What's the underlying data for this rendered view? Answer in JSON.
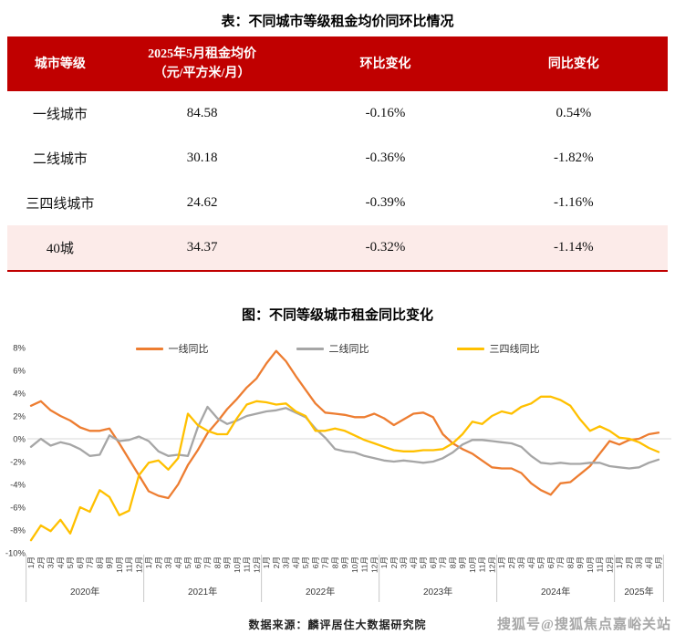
{
  "colors": {
    "header_red": "#c00000",
    "highlight_pink": "#fcebe9",
    "gridline": "#d9d9d9",
    "axis_text": "#3a3a3a",
    "separator": "#c8c8c8",
    "watermark_gray": "#a8a8a8"
  },
  "table": {
    "title": "表：不同城市等级租金均价同环比情况",
    "headers": [
      "城市等级",
      "2025年5月租金均价\n（元/平方米/月）",
      "环比变化",
      "同比变化"
    ],
    "rows": [
      {
        "tier": "一线城市",
        "price": "84.58",
        "mom": "-0.16%",
        "yoy": "0.54%"
      },
      {
        "tier": "二线城市",
        "price": "30.18",
        "mom": "-0.36%",
        "yoy": "-1.82%"
      },
      {
        "tier": "三四线城市",
        "price": "24.62",
        "mom": "-0.39%",
        "yoy": "-1.16%"
      },
      {
        "tier": "40城",
        "price": "34.37",
        "mom": "-0.32%",
        "yoy": "-1.14%"
      }
    ]
  },
  "chart_data": {
    "type": "line",
    "title": "图：不同等级城市租金同比变化",
    "ylabel": "",
    "xlabel": "",
    "ylim": [
      -10,
      8
    ],
    "y_ticks": [
      8,
      6,
      4,
      2,
      0,
      -2,
      -4,
      -6,
      -8,
      -10
    ],
    "y_tick_labels": [
      "8%",
      "6%",
      "4%",
      "2%",
      "0%",
      "-2%",
      "-4%",
      "-6%",
      "-8%",
      "-10%"
    ],
    "grid": "0%-line only",
    "legend_position": "top",
    "year_labels": [
      "2020年",
      "2021年",
      "2022年",
      "2023年",
      "2024年",
      "2025年"
    ],
    "year_month_counts": [
      12,
      12,
      12,
      12,
      12,
      5
    ],
    "x_labels": [
      "1月",
      "2月",
      "3月",
      "4月",
      "5月",
      "6月",
      "7月",
      "8月",
      "9月",
      "10月",
      "11月",
      "12月",
      "1月",
      "2月",
      "3月",
      "4月",
      "5月",
      "6月",
      "7月",
      "8月",
      "9月",
      "10月",
      "11月",
      "12月",
      "1月",
      "2月",
      "3月",
      "4月",
      "5月",
      "6月",
      "7月",
      "8月",
      "9月",
      "10月",
      "11月",
      "12月",
      "1月",
      "2月",
      "3月",
      "4月",
      "5月",
      "6月",
      "7月",
      "8月",
      "9月",
      "10月",
      "11月",
      "12月",
      "1月",
      "2月",
      "3月",
      "4月",
      "5月",
      "6月",
      "7月",
      "8月",
      "9月",
      "10月",
      "11月",
      "12月",
      "1月",
      "2月",
      "3月",
      "4月",
      "5月"
    ],
    "series": [
      {
        "name": "一线同比",
        "color": "#ed7d31",
        "values": [
          2.9,
          3.3,
          2.5,
          2.0,
          1.6,
          1.0,
          0.7,
          0.7,
          0.9,
          -0.4,
          -1.8,
          -3.2,
          -4.6,
          -5.0,
          -5.2,
          -4.0,
          -2.3,
          -1.0,
          0.5,
          1.5,
          2.6,
          3.5,
          4.5,
          5.3,
          6.6,
          7.7,
          6.8,
          5.5,
          4.3,
          3.1,
          2.3,
          2.2,
          2.1,
          1.9,
          1.9,
          2.2,
          1.8,
          1.2,
          1.7,
          2.2,
          2.3,
          1.9,
          0.4,
          -0.4,
          -0.9,
          -1.3,
          -1.9,
          -2.5,
          -2.6,
          -2.6,
          -3.0,
          -3.9,
          -4.5,
          -4.9,
          -3.9,
          -3.8,
          -3.1,
          -2.4,
          -1.3,
          -0.2,
          -0.5,
          -0.1,
          0.0,
          0.4,
          0.54
        ]
      },
      {
        "name": "二线同比",
        "color": "#a6a6a6",
        "values": [
          -0.7,
          0.0,
          -0.6,
          -0.3,
          -0.5,
          -0.9,
          -1.5,
          -1.4,
          0.3,
          -0.2,
          -0.1,
          0.2,
          -0.2,
          -1.1,
          -1.5,
          -1.4,
          -1.5,
          1.0,
          2.8,
          1.8,
          1.3,
          1.6,
          2.0,
          2.2,
          2.4,
          2.5,
          2.7,
          2.3,
          1.9,
          0.9,
          0.1,
          -0.9,
          -1.1,
          -1.2,
          -1.5,
          -1.7,
          -1.9,
          -2.0,
          -1.9,
          -2.0,
          -2.1,
          -2.0,
          -1.7,
          -1.2,
          -0.5,
          -0.1,
          -0.1,
          -0.2,
          -0.3,
          -0.4,
          -0.7,
          -1.5,
          -2.1,
          -2.2,
          -2.1,
          -2.2,
          -2.2,
          -2.1,
          -2.1,
          -2.4,
          -2.5,
          -2.6,
          -2.5,
          -2.1,
          -1.82
        ]
      },
      {
        "name": "三四线同比",
        "color": "#ffc000",
        "values": [
          -8.9,
          -7.6,
          -8.1,
          -7.1,
          -8.3,
          -6.0,
          -6.4,
          -4.5,
          -5.1,
          -6.7,
          -6.3,
          -3.2,
          -2.1,
          -1.9,
          -2.7,
          -1.7,
          2.2,
          1.2,
          0.7,
          0.4,
          0.4,
          1.8,
          3.0,
          3.3,
          3.2,
          3.0,
          3.1,
          2.4,
          2.0,
          0.7,
          0.7,
          0.9,
          0.7,
          0.3,
          -0.1,
          -0.4,
          -0.7,
          -1.0,
          -1.1,
          -1.1,
          -1.0,
          -1.0,
          -0.9,
          -0.4,
          0.4,
          1.5,
          1.3,
          2.0,
          2.4,
          2.2,
          2.8,
          3.1,
          3.7,
          3.7,
          3.4,
          2.9,
          1.7,
          0.7,
          1.1,
          0.7,
          0.1,
          0.0,
          -0.3,
          -0.8,
          -1.16
        ]
      }
    ]
  },
  "footer": {
    "source": "数据来源：麟评居住大数据研究院",
    "watermark": "搜狐号@搜狐焦点嘉峪关站"
  }
}
